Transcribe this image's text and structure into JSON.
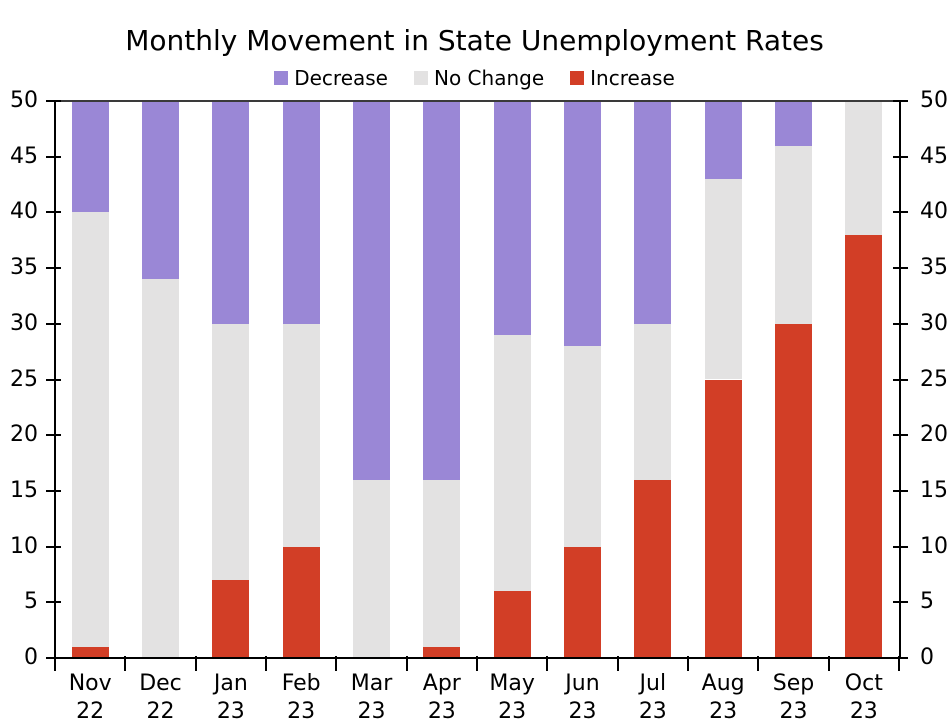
{
  "chart_data": {
    "type": "bar",
    "stacked": true,
    "title": "Monthly Movement in State Unemployment Rates",
    "categories": [
      [
        "Nov",
        "22"
      ],
      [
        "Dec",
        "22"
      ],
      [
        "Jan",
        "23"
      ],
      [
        "Feb",
        "23"
      ],
      [
        "Mar",
        "23"
      ],
      [
        "Apr",
        "23"
      ],
      [
        "May",
        "23"
      ],
      [
        "Jun",
        "23"
      ],
      [
        "Jul",
        "23"
      ],
      [
        "Aug",
        "23"
      ],
      [
        "Sep",
        "23"
      ],
      [
        "Oct",
        "23"
      ]
    ],
    "series": [
      {
        "name": "Decrease",
        "color": "#9a87d6",
        "values": [
          10,
          16,
          20,
          20,
          34,
          34,
          21,
          22,
          20,
          7,
          4,
          0
        ]
      },
      {
        "name": "No Change",
        "color": "#e3e2e2",
        "values": [
          39,
          34,
          23,
          20,
          16,
          15,
          23,
          18,
          14,
          18,
          16,
          12
        ]
      },
      {
        "name": "Increase",
        "color": "#d23e26",
        "values": [
          1,
          0,
          7,
          10,
          0,
          1,
          6,
          10,
          16,
          25,
          30,
          38
        ]
      }
    ],
    "stack_order_bottom_to_top": [
      "Increase",
      "No Change",
      "Decrease"
    ],
    "ylim": [
      0,
      50
    ],
    "ytick_step": 5,
    "y_axis_sides": [
      "left",
      "right"
    ],
    "legend_position": "top",
    "grid": false,
    "axis_color": "#000000",
    "top_border_color": "#3a3a3a"
  }
}
